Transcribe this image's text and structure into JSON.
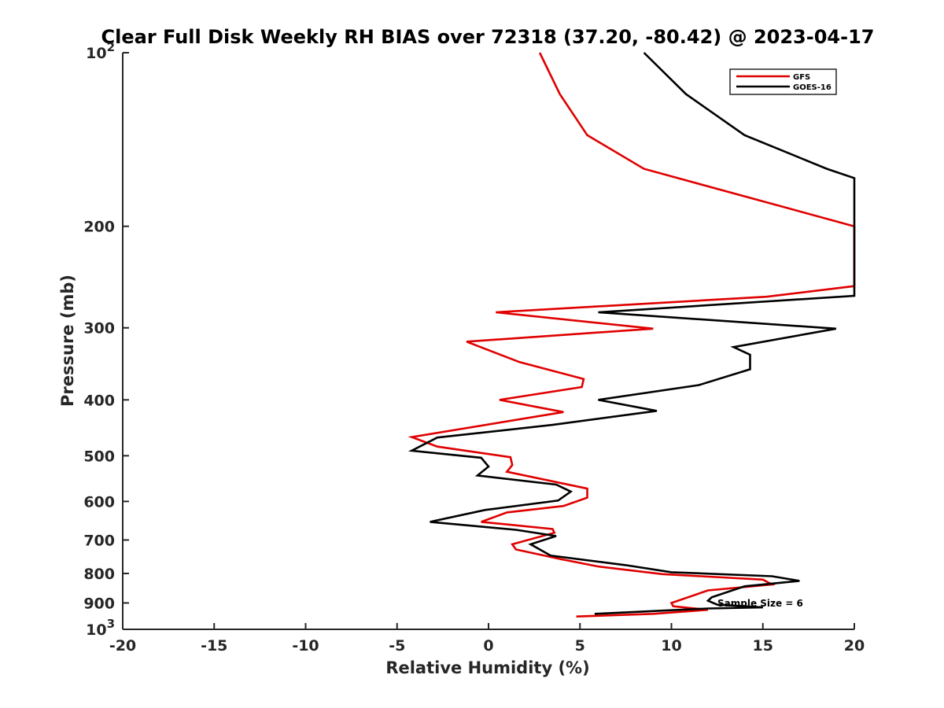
{
  "chart_data": {
    "type": "line",
    "title": "Clear Full Disk Weekly RH BIAS over 72318 (37.20, -80.42) @ 2023-04-17",
    "xlabel": "Relative Humidity (%)",
    "ylabel": "Pressure (mb)",
    "xlim": [
      -20,
      20
    ],
    "ylim": [
      100,
      1000
    ],
    "y_scale": "log",
    "y_reversed": true,
    "grid": false,
    "legend_position": "top-right",
    "x_ticks": [
      "-20",
      "-15",
      "-10",
      "-5",
      "0",
      "5",
      "10",
      "15",
      "20"
    ],
    "y_ticks": [
      {
        "base": "10",
        "exp": "2"
      },
      {
        "base": "200",
        "exp": ""
      },
      {
        "base": "300",
        "exp": ""
      },
      {
        "base": "400",
        "exp": ""
      },
      {
        "base": "500",
        "exp": ""
      },
      {
        "base": "600",
        "exp": ""
      },
      {
        "base": "700",
        "exp": ""
      },
      {
        "base": "800",
        "exp": ""
      },
      {
        "base": "900",
        "exp": ""
      },
      {
        "base": "10",
        "exp": "3"
      }
    ],
    "series": [
      {
        "name": "GFS",
        "color": "#e00000",
        "points": [
          [
            2.8,
            100
          ],
          [
            3.9,
            118
          ],
          [
            5.4,
            139
          ],
          [
            8.5,
            159
          ],
          [
            20,
            200
          ],
          [
            20,
            254
          ],
          [
            15.2,
            265
          ],
          [
            0.4,
            282
          ],
          [
            9.0,
            301
          ],
          [
            -1.2,
            317
          ],
          [
            1.7,
            344
          ],
          [
            5.2,
            368
          ],
          [
            5.1,
            380
          ],
          [
            0.6,
            400
          ],
          [
            4.1,
            420
          ],
          [
            -4.2,
            464
          ],
          [
            -2.8,
            482
          ],
          [
            1.2,
            503
          ],
          [
            1.3,
            519
          ],
          [
            1.0,
            533
          ],
          [
            5.4,
            570
          ],
          [
            5.4,
            591
          ],
          [
            4.1,
            611
          ],
          [
            1.0,
            627
          ],
          [
            -0.4,
            651
          ],
          [
            3.5,
            670
          ],
          [
            3.6,
            680
          ],
          [
            1.3,
            712
          ],
          [
            1.5,
            727
          ],
          [
            4.0,
            756
          ],
          [
            6.0,
            778
          ],
          [
            9.5,
            802
          ],
          [
            15.0,
            820
          ],
          [
            15.5,
            836
          ],
          [
            12.0,
            856
          ],
          [
            10.0,
            900
          ],
          [
            10.1,
            912
          ],
          [
            12.0,
            925
          ],
          [
            9.0,
            940
          ],
          [
            4.8,
            950
          ]
        ]
      },
      {
        "name": "GOES-16",
        "color": "#000000",
        "points": [
          [
            8.5,
            100
          ],
          [
            10.8,
            118
          ],
          [
            14.0,
            139
          ],
          [
            18.5,
            159
          ],
          [
            20,
            165
          ],
          [
            20,
            264
          ],
          [
            6.0,
            282
          ],
          [
            19.0,
            301
          ],
          [
            13.4,
            324
          ],
          [
            14.3,
            334
          ],
          [
            14.3,
            354
          ],
          [
            11.5,
            377
          ],
          [
            6.0,
            400
          ],
          [
            9.2,
            418
          ],
          [
            3.5,
            442
          ],
          [
            -2.8,
            465
          ],
          [
            -4.2,
            490
          ],
          [
            -0.4,
            504
          ],
          [
            0.0,
            522
          ],
          [
            -0.6,
            541
          ],
          [
            3.7,
            561
          ],
          [
            4.5,
            577
          ],
          [
            3.8,
            598
          ],
          [
            -0.2,
            621
          ],
          [
            -3.2,
            651
          ],
          [
            1.5,
            672
          ],
          [
            3.7,
            689
          ],
          [
            2.3,
            712
          ],
          [
            3.4,
            745
          ],
          [
            7.5,
            774
          ],
          [
            10.0,
            796
          ],
          [
            15.5,
            809
          ],
          [
            17.0,
            824
          ],
          [
            14.0,
            842
          ],
          [
            12.2,
            880
          ],
          [
            12.0,
            892
          ],
          [
            12.5,
            906
          ],
          [
            15.0,
            916
          ],
          [
            12.0,
            920
          ],
          [
            5.8,
            940
          ]
        ]
      }
    ],
    "annotation": "Sample Size = 6"
  }
}
